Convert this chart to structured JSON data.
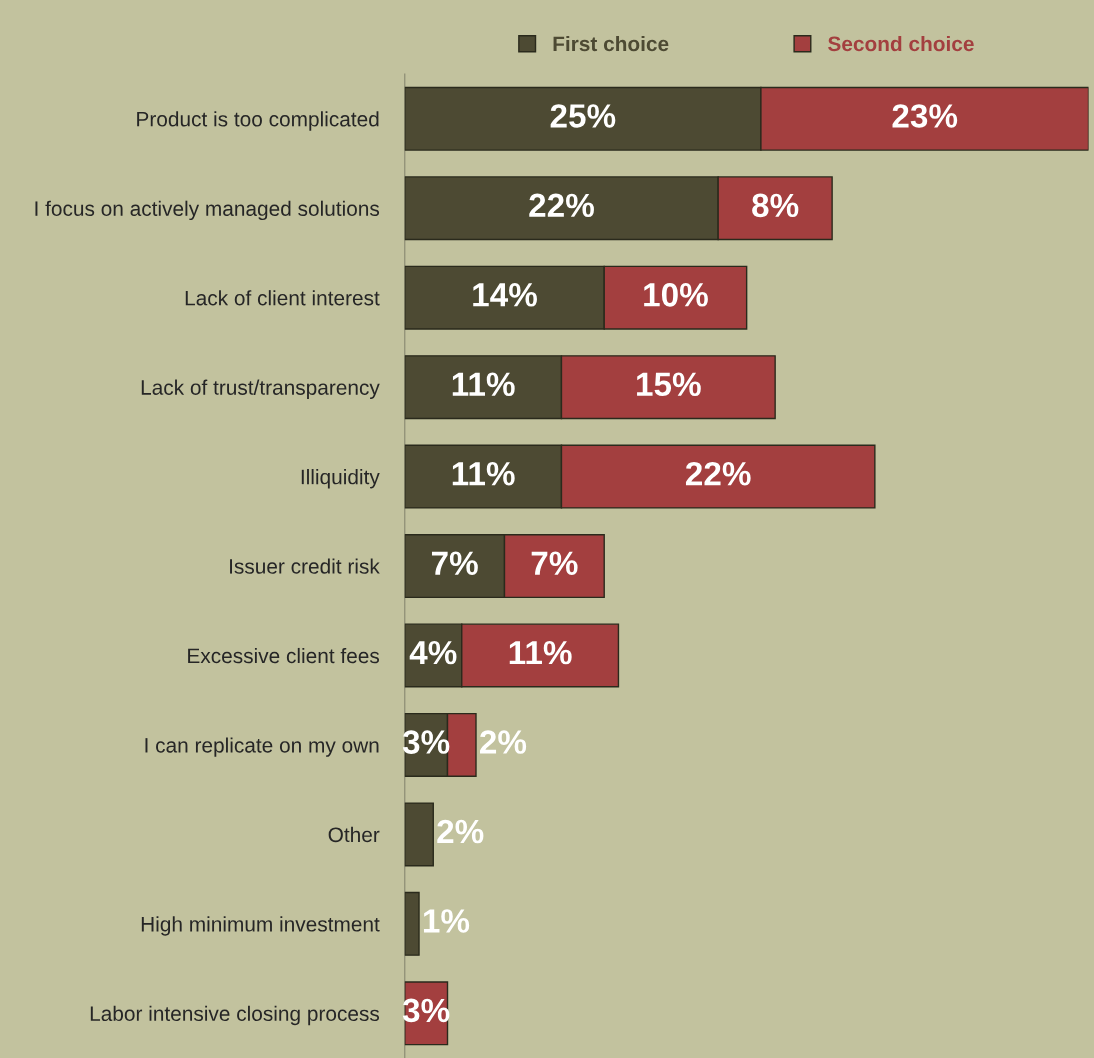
{
  "chart_data": {
    "type": "bar",
    "orientation": "horizontal",
    "stacked": true,
    "categories": [
      "Product is too complicated",
      "I focus on actively managed solutions",
      "Lack of client interest",
      "Lack of trust/transparency",
      "Illiquidity",
      "Issuer credit risk",
      "Excessive client fees",
      "I can replicate on my own",
      "Other",
      "High minimum investment",
      "Labor intensive closing process"
    ],
    "series": [
      {
        "name": "First choice",
        "color": "#4d4a33",
        "values": [
          25,
          22,
          14,
          11,
          11,
          7,
          4,
          3,
          2,
          1,
          null
        ],
        "value_labels": [
          "25%",
          "22%",
          "14%",
          "11%",
          "11%",
          "7%",
          "4%",
          "3%",
          "2%",
          "1%",
          null
        ]
      },
      {
        "name": "Second choice",
        "color": "#a33f3f",
        "values": [
          23,
          8,
          10,
          15,
          22,
          7,
          11,
          2,
          null,
          null,
          3
        ],
        "value_labels": [
          "23%",
          "8%",
          "10%",
          "15%",
          "22%",
          "7%",
          "11%",
          "2%",
          null,
          null,
          "3%"
        ]
      }
    ],
    "xlim": [
      0,
      48
    ],
    "tick_labels": "y",
    "legend": "top",
    "grid": false
  }
}
